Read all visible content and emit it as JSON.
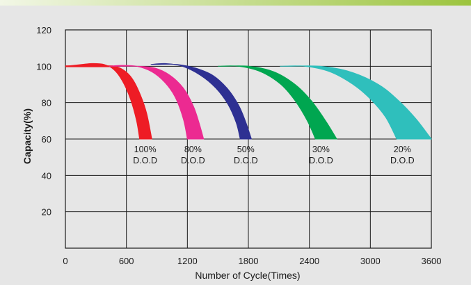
{
  "chart_data": {
    "type": "area",
    "xlabel": "Number of Cycle(Times)",
    "ylabel": "Capacity(%)",
    "xlim": [
      0,
      3600
    ],
    "ylim": [
      0,
      120
    ],
    "x_ticks": [
      "0",
      "600",
      "1200",
      "1800",
      "2400",
      "3000",
      "3600"
    ],
    "y_ticks": [
      "20",
      "40",
      "60",
      "80",
      "100",
      "120"
    ],
    "grid": true,
    "series": [
      {
        "label_line1": "100%",
        "label_line2": "D.O.D",
        "color": "#ee1c25",
        "lower_curve": [
          [
            0,
            100
          ],
          [
            160,
            101
          ],
          [
            260,
            101.5
          ],
          [
            380,
            101
          ],
          [
            480,
            98
          ],
          [
            560,
            92
          ],
          [
            640,
            82
          ],
          [
            700,
            70
          ],
          [
            730,
            60
          ]
        ],
        "upper_curve": [
          [
            0,
            100
          ],
          [
            300,
            100
          ],
          [
            470,
            100
          ],
          [
            570,
            98
          ],
          [
            660,
            93
          ],
          [
            740,
            84
          ],
          [
            800,
            74
          ],
          [
            850,
            60
          ]
        ]
      },
      {
        "label_line1": "80%",
        "label_line2": "D.O.D",
        "color": "#ec2a91",
        "lower_curve": [
          [
            430,
            100
          ],
          [
            550,
            100.5
          ],
          [
            700,
            100
          ],
          [
            850,
            97
          ],
          [
            980,
            91
          ],
          [
            1080,
            83
          ],
          [
            1160,
            71
          ],
          [
            1200,
            60
          ]
        ],
        "upper_curve": [
          [
            520,
            100
          ],
          [
            700,
            100
          ],
          [
            880,
            99
          ],
          [
            1030,
            95
          ],
          [
            1160,
            88
          ],
          [
            1260,
            78
          ],
          [
            1320,
            68
          ],
          [
            1360,
            60
          ]
        ]
      },
      {
        "label_line1": "50%",
        "label_line2": "D.O.D",
        "color": "#2e3092",
        "lower_curve": [
          [
            840,
            101
          ],
          [
            980,
            101.5
          ],
          [
            1150,
            100
          ],
          [
            1330,
            95
          ],
          [
            1480,
            88
          ],
          [
            1600,
            79
          ],
          [
            1680,
            69
          ],
          [
            1720,
            60
          ]
        ],
        "upper_curve": [
          [
            920,
            101
          ],
          [
            1100,
            101
          ],
          [
            1280,
            99
          ],
          [
            1450,
            95
          ],
          [
            1590,
            88
          ],
          [
            1700,
            79
          ],
          [
            1770,
            70
          ],
          [
            1830,
            60
          ]
        ]
      },
      {
        "label_line1": "30%",
        "label_line2": "D.O.D",
        "color": "#00a650",
        "lower_curve": [
          [
            1500,
            100
          ],
          [
            1700,
            100
          ],
          [
            1920,
            97
          ],
          [
            2120,
            90
          ],
          [
            2260,
            81
          ],
          [
            2380,
            70
          ],
          [
            2460,
            60
          ]
        ],
        "upper_curve": [
          [
            1540,
            100
          ],
          [
            1800,
            100
          ],
          [
            2050,
            97
          ],
          [
            2260,
            90
          ],
          [
            2420,
            81
          ],
          [
            2560,
            70
          ],
          [
            2670,
            60
          ]
        ]
      },
      {
        "label_line1": "20%",
        "label_line2": "D.O.D",
        "color": "#2fbfbc",
        "lower_curve": [
          [
            2110,
            100
          ],
          [
            2350,
            100
          ],
          [
            2600,
            97
          ],
          [
            2830,
            90
          ],
          [
            3000,
            82
          ],
          [
            3150,
            72
          ],
          [
            3260,
            60
          ]
        ],
        "upper_curve": [
          [
            2180,
            100
          ],
          [
            2500,
            100
          ],
          [
            2800,
            97
          ],
          [
            3080,
            90
          ],
          [
            3280,
            81
          ],
          [
            3450,
            71
          ],
          [
            3600,
            60
          ]
        ]
      }
    ],
    "baseline_color": "#ee1c25"
  },
  "colors": {
    "background": "#e6e6e6",
    "grid": "#1a1a1a",
    "top_band_start": "#f2f7e6",
    "top_band_end": "#9cc43e"
  }
}
